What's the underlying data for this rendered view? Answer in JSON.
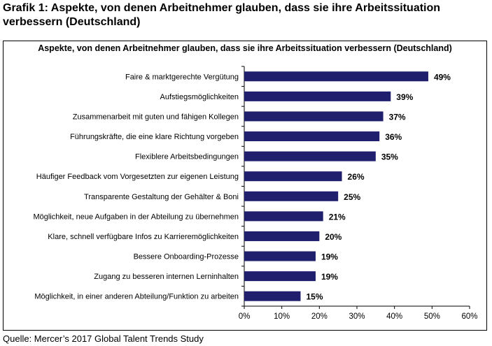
{
  "figure": {
    "title": "Grafik 1: Aspekte, von denen Arbeitnehmer glauben, dass sie ihre Arbeitssituation verbessern (Deutschland)",
    "source": "Quelle: Mercer’s 2017 Global Talent Trends Study"
  },
  "colors": {
    "bar": "#1f1f6e",
    "axis": "#000000",
    "frame": "#000000"
  },
  "chart_data": {
    "type": "bar",
    "orientation": "horizontal",
    "title": "Aspekte, von denen Arbeitnehmer glauben, dass sie ihre Arbeitssituation verbessern (Deutschland)",
    "categories": [
      "Faire & marktgerechte Vergütung",
      "Aufstiegsmöglichkeiten",
      "Zusammenarbeit mit guten und fähigen Kollegen",
      "Führungskräfte, die eine klare Richtung vorgeben",
      "Flexiblere Arbeitsbedingungen",
      "Häufiger Feedback vom Vorgesetzten zur eigenen Leistung",
      "Transparente Gestaltung der Gehälter & Boni",
      "Möglichkeit, neue Aufgaben in der Abteilung zu übernehmen",
      "Klare, schnell verfügbare Infos zu Karrieremöglichkeiten",
      "Bessere Onboarding-Prozesse",
      "Zugang zu besseren internen Lerninhalten",
      "Möglichkeit, in einer anderen Abteilung/Funktion zu arbeiten"
    ],
    "values": [
      49,
      39,
      37,
      36,
      35,
      26,
      25,
      21,
      20,
      19,
      19,
      15
    ],
    "value_labels": [
      "49%",
      "39%",
      "37%",
      "36%",
      "35%",
      "26%",
      "25%",
      "21%",
      "20%",
      "19%",
      "19%",
      "15%"
    ],
    "xlim": [
      0,
      60
    ],
    "x_ticks": [
      0,
      10,
      20,
      30,
      40,
      50,
      60
    ],
    "x_tick_labels": [
      "0%",
      "10%",
      "20%",
      "30%",
      "40%",
      "50%",
      "60%"
    ],
    "grid": false,
    "legend": "none"
  }
}
